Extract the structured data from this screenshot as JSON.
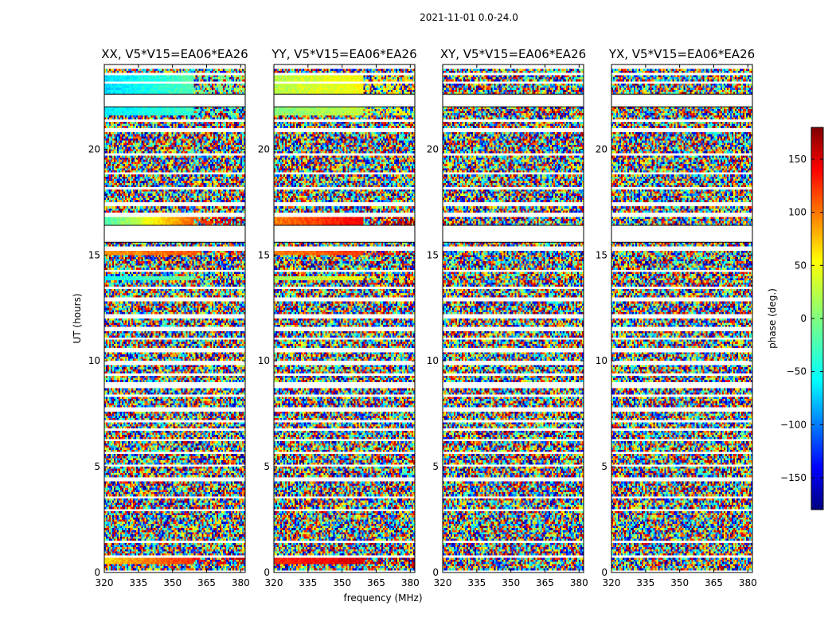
{
  "suptitle": "2021-11-01 0.0-24.0",
  "chart_data": [
    {
      "type": "heatmap",
      "title": "XX, V5*V15=EA06*EA26",
      "polarization": "XX",
      "xlabel": "",
      "ylabel": "UT (hours)",
      "xlim": [
        320,
        382
      ],
      "ylim": [
        0,
        24
      ],
      "xticks": [
        "320",
        "335",
        "350",
        "365",
        "380"
      ],
      "yticks": [
        "0",
        "5",
        "10",
        "15",
        "20"
      ],
      "coherent_rows": [
        {
          "ut": [
            0.4,
            0.75
          ],
          "phase_start": 60,
          "phase_end": 160
        },
        {
          "ut": [
            13.8,
            14.0
          ],
          "phase_start": -40,
          "phase_end": 20
        },
        {
          "ut": [
            15.0,
            15.15
          ],
          "phase_start": 80,
          "phase_end": 120
        },
        {
          "ut": [
            16.4,
            16.85
          ],
          "phase_start": -20,
          "phase_end": 170
        },
        {
          "ut": [
            21.6,
            22.0
          ],
          "phase_start": -50,
          "phase_end": -10
        },
        {
          "ut": [
            22.6,
            23.5
          ],
          "phase_start": -60,
          "phase_end": 10
        }
      ]
    },
    {
      "type": "heatmap",
      "title": "YY, V5*V15=EA06*EA26",
      "polarization": "YY",
      "xlabel": "frequency (MHz)",
      "ylabel": "",
      "xlim": [
        320,
        382
      ],
      "ylim": [
        0,
        24
      ],
      "xticks": [
        "320",
        "335",
        "350",
        "365",
        "380"
      ],
      "yticks": [
        "0",
        "5",
        "10",
        "15",
        "20"
      ],
      "coherent_rows": [
        {
          "ut": [
            0.4,
            0.75
          ],
          "phase_start": 120,
          "phase_end": 170
        },
        {
          "ut": [
            13.8,
            14.0
          ],
          "phase_start": 10,
          "phase_end": 60
        },
        {
          "ut": [
            15.0,
            15.15
          ],
          "phase_start": 90,
          "phase_end": 130
        },
        {
          "ut": [
            16.4,
            16.85
          ],
          "phase_start": 90,
          "phase_end": 170
        },
        {
          "ut": [
            21.6,
            22.0
          ],
          "phase_start": 0,
          "phase_end": 40
        },
        {
          "ut": [
            22.6,
            23.5
          ],
          "phase_start": 20,
          "phase_end": 60
        }
      ]
    },
    {
      "type": "heatmap",
      "title": "XY, V5*V15=EA06*EA26",
      "polarization": "XY",
      "xlabel": "",
      "ylabel": "",
      "xlim": [
        320,
        382
      ],
      "ylim": [
        0,
        24
      ],
      "xticks": [
        "320",
        "335",
        "350",
        "365",
        "380"
      ],
      "yticks": [
        "0",
        "5",
        "10",
        "15",
        "20"
      ],
      "coherent_rows": []
    },
    {
      "type": "heatmap",
      "title": "YX, V5*V15=EA06*EA26",
      "polarization": "YX",
      "xlabel": "",
      "ylabel": "",
      "xlim": [
        320,
        382
      ],
      "ylim": [
        0,
        24
      ],
      "xticks": [
        "320",
        "335",
        "350",
        "365",
        "380"
      ],
      "yticks": [
        "0",
        "5",
        "10",
        "15",
        "20"
      ],
      "coherent_rows": []
    }
  ],
  "flagged_gaps_ut": [
    [
      0.0,
      0.12
    ],
    [
      0.75,
      0.85
    ],
    [
      1.4,
      1.5
    ],
    [
      2.9,
      3.0
    ],
    [
      3.55,
      3.6
    ],
    [
      4.35,
      4.45
    ],
    [
      5.0,
      5.08
    ],
    [
      5.6,
      5.7
    ],
    [
      6.15,
      6.25
    ],
    [
      6.65,
      6.75
    ],
    [
      7.1,
      7.2
    ],
    [
      7.6,
      7.8
    ],
    [
      8.3,
      8.4
    ],
    [
      8.75,
      9.0
    ],
    [
      9.3,
      9.4
    ],
    [
      9.85,
      9.95
    ],
    [
      10.45,
      10.55
    ],
    [
      11.0,
      11.1
    ],
    [
      11.45,
      11.55
    ],
    [
      12.0,
      12.15
    ],
    [
      12.85,
      13.0
    ],
    [
      13.4,
      13.5
    ],
    [
      14.2,
      14.3
    ],
    [
      15.2,
      15.4
    ],
    [
      15.6,
      16.4
    ],
    [
      16.85,
      16.95
    ],
    [
      17.3,
      17.5
    ],
    [
      18.1,
      18.2
    ],
    [
      18.8,
      18.9
    ],
    [
      19.7,
      19.8
    ],
    [
      20.8,
      21.0
    ],
    [
      21.3,
      21.4
    ],
    [
      22.0,
      22.6
    ],
    [
      23.1,
      23.2
    ],
    [
      23.5,
      23.6
    ],
    [
      23.85,
      24.0
    ]
  ],
  "colorbar": {
    "label": "phase (deg.)",
    "range": [
      -180,
      180
    ],
    "ticks": [
      "150",
      "100",
      "50",
      "0",
      "−50",
      "−100",
      "−150"
    ],
    "tick_values": [
      150,
      100,
      50,
      0,
      -50,
      -100,
      -150
    ],
    "colormap": "jet"
  }
}
